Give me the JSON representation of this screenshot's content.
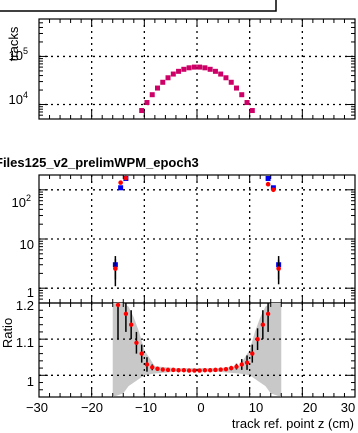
{
  "top_panel": {
    "ylabel": "tracks",
    "yticks": [
      {
        "base": "10",
        "exp": "4",
        "value": 10000
      },
      {
        "base": "10",
        "exp": "5",
        "value": 100000
      }
    ]
  },
  "bottom_panel": {
    "title": "Files125_v2_prelimWPM_epoch3",
    "yticks": [
      {
        "label": "1",
        "value": 1
      },
      {
        "label": "10",
        "value": 10
      },
      {
        "base": "10",
        "exp": "2",
        "value": 100
      }
    ]
  },
  "ratio_panel": {
    "ylabel": "Ratio",
    "yticks": [
      {
        "label": "1",
        "value": 1.0
      },
      {
        "label": "1.1",
        "value": 1.1
      },
      {
        "label": "1.2",
        "value": 1.2
      }
    ]
  },
  "xaxis": {
    "label": "track ref. point z (cm)",
    "ticks": [
      {
        "label": "−30",
        "value": -30
      },
      {
        "label": "−20",
        "value": -20
      },
      {
        "label": "−10",
        "value": -10
      },
      {
        "label": "0",
        "value": 0
      },
      {
        "label": "10",
        "value": 10
      },
      {
        "label": "20",
        "value": 20
      },
      {
        "label": "30",
        "value": 30
      }
    ]
  },
  "colors": {
    "red": "#ff0000",
    "blue": "#0000ee",
    "magenta": "#cc0066",
    "band": "#c8c8c8"
  },
  "chart_data": [
    {
      "type": "scatter",
      "xlim": [
        -30,
        30
      ],
      "ylim": [
        5000,
        600000
      ],
      "yscale": "log",
      "grid": true,
      "points": [
        {
          "x": -11.5,
          "y": 5000
        },
        {
          "x": -10.5,
          "y": 7500
        },
        {
          "x": -9.5,
          "y": 11000
        },
        {
          "x": -8.5,
          "y": 16000
        },
        {
          "x": -7.5,
          "y": 22000
        },
        {
          "x": -6.5,
          "y": 29000
        },
        {
          "x": -5.5,
          "y": 36000
        },
        {
          "x": -4.5,
          "y": 43000
        },
        {
          "x": -3.5,
          "y": 49000
        },
        {
          "x": -2.5,
          "y": 54000
        },
        {
          "x": -1.5,
          "y": 58000
        },
        {
          "x": -0.5,
          "y": 60000
        },
        {
          "x": 0.5,
          "y": 60000
        },
        {
          "x": 1.5,
          "y": 58000
        },
        {
          "x": 2.5,
          "y": 54000
        },
        {
          "x": 3.5,
          "y": 49000
        },
        {
          "x": 4.5,
          "y": 43000
        },
        {
          "x": 5.5,
          "y": 36000
        },
        {
          "x": 6.5,
          "y": 29000
        },
        {
          "x": 7.5,
          "y": 22000
        },
        {
          "x": 8.5,
          "y": 16000
        },
        {
          "x": 9.5,
          "y": 11000
        },
        {
          "x": 10.5,
          "y": 7500
        },
        {
          "x": 11.5,
          "y": 5000
        }
      ]
    },
    {
      "type": "scatter",
      "title": "Files125_v2_prelimWPM_epoch3",
      "xlim": [
        -30,
        30
      ],
      "ylim": [
        0.5,
        200
      ],
      "yscale": "log",
      "grid": true,
      "series": [
        {
          "color": "blue",
          "points": [
            {
              "x": -15.5,
              "y": 3.0,
              "err": 1.5
            },
            {
              "x": -14.5,
              "y": 110
            },
            {
              "x": -13.5,
              "y": 170
            },
            {
              "x": 13.5,
              "y": 170
            },
            {
              "x": 14.5,
              "y": 110
            },
            {
              "x": 15.5,
              "y": 3.0,
              "err": 1.5
            }
          ]
        },
        {
          "color": "red",
          "points": [
            {
              "x": -15.5,
              "y": 2.5,
              "err": 1.4
            },
            {
              "x": -14.5,
              "y": 140
            },
            {
              "x": -13.5,
              "y": 190
            },
            {
              "x": 13.5,
              "y": 130
            },
            {
              "x": 14.5,
              "y": 100
            },
            {
              "x": 15.5,
              "y": 2.5,
              "err": 1.3
            }
          ]
        }
      ]
    },
    {
      "type": "scatter",
      "ylabel": "Ratio",
      "xlabel": "track ref. point z (cm)",
      "xlim": [
        -30,
        30
      ],
      "ylim": [
        0.94,
        1.2
      ],
      "grid": true,
      "band": [
        {
          "x": -16,
          "lo": 0.94,
          "hi": 1.2
        },
        {
          "x": -14,
          "lo": 0.95,
          "hi": 1.2
        },
        {
          "x": -13,
          "lo": 0.97,
          "hi": 1.19
        },
        {
          "x": -12,
          "lo": 0.98,
          "hi": 1.16
        },
        {
          "x": -11,
          "lo": 0.99,
          "hi": 1.12
        },
        {
          "x": -10,
          "lo": 1.0,
          "hi": 1.07
        },
        {
          "x": -8,
          "lo": 1.005,
          "hi": 1.025
        },
        {
          "x": -4,
          "lo": 1.01,
          "hi": 1.02
        },
        {
          "x": 0,
          "lo": 1.01,
          "hi": 1.02
        },
        {
          "x": 4,
          "lo": 1.01,
          "hi": 1.02
        },
        {
          "x": 8,
          "lo": 1.005,
          "hi": 1.025
        },
        {
          "x": 10,
          "lo": 1.0,
          "hi": 1.07
        },
        {
          "x": 11,
          "lo": 0.99,
          "hi": 1.12
        },
        {
          "x": 12,
          "lo": 0.98,
          "hi": 1.16
        },
        {
          "x": 13,
          "lo": 0.97,
          "hi": 1.19
        },
        {
          "x": 14,
          "lo": 0.95,
          "hi": 1.2
        },
        {
          "x": 16,
          "lo": 0.94,
          "hi": 1.2
        }
      ],
      "points": [
        {
          "x": -15.0,
          "y": 1.2,
          "err": 0.1
        },
        {
          "x": -13.5,
          "y": 1.17,
          "err": 0.05
        },
        {
          "x": -12.5,
          "y": 1.14,
          "err": 0.04
        },
        {
          "x": -11.5,
          "y": 1.09,
          "err": 0.03
        },
        {
          "x": -10.5,
          "y": 1.06,
          "err": 0.025
        },
        {
          "x": -9.5,
          "y": 1.03,
          "err": 0.02
        },
        {
          "x": -8.5,
          "y": 1.022,
          "err": 0.008
        },
        {
          "x": -7.5,
          "y": 1.018,
          "err": 0.006
        },
        {
          "x": -6.5,
          "y": 1.016
        },
        {
          "x": -5.5,
          "y": 1.015
        },
        {
          "x": -4.5,
          "y": 1.015
        },
        {
          "x": -3.5,
          "y": 1.014
        },
        {
          "x": -2.5,
          "y": 1.014
        },
        {
          "x": -1.5,
          "y": 1.013
        },
        {
          "x": -0.5,
          "y": 1.013
        },
        {
          "x": 0.5,
          "y": 1.013
        },
        {
          "x": 1.5,
          "y": 1.014
        },
        {
          "x": 2.5,
          "y": 1.014
        },
        {
          "x": 3.5,
          "y": 1.015
        },
        {
          "x": 4.5,
          "y": 1.016
        },
        {
          "x": 5.5,
          "y": 1.017
        },
        {
          "x": 6.5,
          "y": 1.02,
          "err": 0.006
        },
        {
          "x": 7.5,
          "y": 1.024,
          "err": 0.008
        },
        {
          "x": 8.5,
          "y": 1.03,
          "err": 0.015
        },
        {
          "x": 9.5,
          "y": 1.035,
          "err": 0.02
        },
        {
          "x": 10.5,
          "y": 1.06,
          "err": 0.025
        },
        {
          "x": 11.5,
          "y": 1.1,
          "err": 0.03
        },
        {
          "x": 12.5,
          "y": 1.14,
          "err": 0.04
        },
        {
          "x": 13.5,
          "y": 1.17,
          "err": 0.05
        }
      ]
    }
  ]
}
